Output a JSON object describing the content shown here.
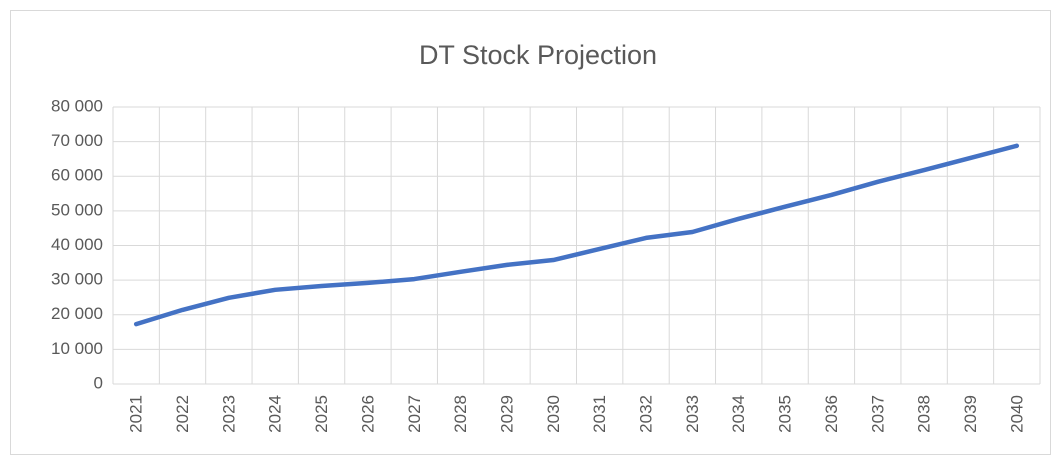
{
  "chart_data": {
    "type": "line",
    "title": "DT Stock Projection",
    "categories": [
      "2021",
      "2022",
      "2023",
      "2024",
      "2025",
      "2026",
      "2027",
      "2028",
      "2029",
      "2030",
      "2031",
      "2032",
      "2033",
      "2034",
      "2035",
      "2036",
      "2037",
      "2038",
      "2039",
      "2040"
    ],
    "series": [
      {
        "color": "#4472c4",
        "values": [
          17300,
          21400,
          24900,
          27200,
          28300,
          29200,
          30300,
          32400,
          34400,
          35800,
          39000,
          42200,
          43900,
          47700,
          51200,
          54600,
          58400,
          61800,
          65300,
          68800
        ]
      }
    ],
    "ylim": [
      0,
      80000
    ],
    "yticks": [
      0,
      {
        "value": 10000,
        "label": "10 000"
      },
      {
        "value": 20000,
        "label": "20 000"
      },
      {
        "value": 30000,
        "label": "30 000"
      },
      {
        "value": 40000,
        "label": "40 000"
      },
      {
        "value": 50000,
        "label": "50 000"
      },
      {
        "value": 60000,
        "label": "60 000"
      },
      {
        "value": 70000,
        "label": "70 000"
      },
      {
        "value": 80000,
        "label": "80 000"
      }
    ],
    "grid": true
  }
}
